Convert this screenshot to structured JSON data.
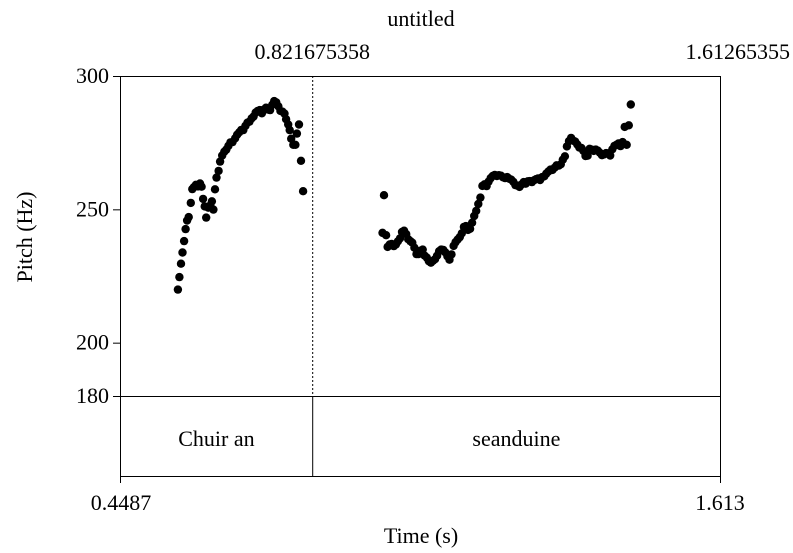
{
  "chart_data": {
    "type": "scatter",
    "title": "untitled",
    "xlabel": "Time (s)",
    "ylabel": "Pitch (Hz)",
    "xlim": [
      0.4487,
      1.613
    ],
    "ylim": [
      180,
      300
    ],
    "x_tick_labels": [
      "0.4487",
      "1.613"
    ],
    "top_tick_labels": [
      "0.821675358",
      "1.61265355"
    ],
    "y_tick_labels": [
      "300",
      "250",
      "200",
      "180"
    ],
    "y_ticks": [
      300,
      250,
      200,
      180
    ],
    "cursor_time": 0.821675358,
    "grid": false,
    "point_color": "#000000",
    "tier": {
      "boundary": 0.821675358,
      "intervals": [
        {
          "label": "Chuir an"
        },
        {
          "label": "seanduine"
        }
      ]
    },
    "points": [
      [
        0.561,
        219.9
      ],
      [
        0.564,
        224.6
      ],
      [
        0.567,
        229.6
      ],
      [
        0.57,
        233.8
      ],
      [
        0.573,
        238.1
      ],
      [
        0.576,
        242.6
      ],
      [
        0.579,
        245.8
      ],
      [
        0.582,
        247.1
      ],
      [
        0.586,
        252.4
      ],
      [
        0.589,
        257.6
      ],
      [
        0.592,
        258.3
      ],
      [
        0.596,
        259.2
      ],
      [
        0.6,
        258.6
      ],
      [
        0.604,
        259.7
      ],
      [
        0.607,
        258.5
      ],
      [
        0.61,
        253.9
      ],
      [
        0.613,
        251.1
      ],
      [
        0.616,
        246.9
      ],
      [
        0.62,
        250.6
      ],
      [
        0.624,
        251.5
      ],
      [
        0.627,
        253.0
      ],
      [
        0.63,
        249.9
      ],
      [
        0.633,
        257.5
      ],
      [
        0.636,
        261.9
      ],
      [
        0.64,
        264.4
      ],
      [
        0.643,
        267.9
      ],
      [
        0.647,
        270.2
      ],
      [
        0.651,
        271.6
      ],
      [
        0.655,
        272.4
      ],
      [
        0.659,
        273.8
      ],
      [
        0.663,
        275.1
      ],
      [
        0.667,
        275.2
      ],
      [
        0.672,
        276.6
      ],
      [
        0.676,
        278.0
      ],
      [
        0.68,
        278.9
      ],
      [
        0.684,
        279.8
      ],
      [
        0.688,
        279.7
      ],
      [
        0.692,
        281.3
      ],
      [
        0.696,
        282.5
      ],
      [
        0.7,
        282.9
      ],
      [
        0.704,
        284.1
      ],
      [
        0.708,
        284.8
      ],
      [
        0.712,
        286.3
      ],
      [
        0.716,
        286.9
      ],
      [
        0.72,
        287.2
      ],
      [
        0.724,
        286.0
      ],
      [
        0.728,
        287.4
      ],
      [
        0.732,
        288.1
      ],
      [
        0.736,
        287.4
      ],
      [
        0.74,
        287.2
      ],
      [
        0.744,
        289.2
      ],
      [
        0.748,
        290.6
      ],
      [
        0.752,
        290.1
      ],
      [
        0.756,
        288.6
      ],
      [
        0.76,
        286.9
      ],
      [
        0.764,
        286.6
      ],
      [
        0.768,
        285.9
      ],
      [
        0.771,
        283.8
      ],
      [
        0.775,
        281.8
      ],
      [
        0.778,
        279.7
      ],
      [
        0.781,
        276.5
      ],
      [
        0.785,
        274.2
      ],
      [
        0.789,
        274.2
      ],
      [
        0.792,
        278.4
      ],
      [
        0.796,
        281.8
      ],
      [
        0.8,
        268.2
      ],
      [
        0.804,
        256.8
      ],
      [
        0.958,
        241.2
      ],
      [
        0.961,
        255.3
      ],
      [
        0.965,
        240.3
      ],
      [
        0.968,
        235.9
      ],
      [
        0.972,
        236.8
      ],
      [
        0.976,
        237.0
      ],
      [
        0.98,
        236.2
      ],
      [
        0.984,
        236.8
      ],
      [
        0.988,
        238.0
      ],
      [
        0.992,
        239.1
      ],
      [
        0.996,
        241.5
      ],
      [
        1.0,
        242.0
      ],
      [
        1.004,
        240.7
      ],
      [
        1.008,
        238.8
      ],
      [
        1.012,
        238.1
      ],
      [
        1.016,
        237.5
      ],
      [
        1.02,
        235.6
      ],
      [
        1.024,
        233.2
      ],
      [
        1.028,
        233.2
      ],
      [
        1.032,
        234.5
      ],
      [
        1.036,
        234.9
      ],
      [
        1.04,
        232.6
      ],
      [
        1.044,
        231.9
      ],
      [
        1.048,
        230.6
      ],
      [
        1.052,
        230.0
      ],
      [
        1.056,
        230.7
      ],
      [
        1.06,
        231.3
      ],
      [
        1.064,
        232.6
      ],
      [
        1.068,
        234.3
      ],
      [
        1.072,
        234.9
      ],
      [
        1.076,
        234.8
      ],
      [
        1.08,
        233.9
      ],
      [
        1.084,
        232.4
      ],
      [
        1.088,
        231.1
      ],
      [
        1.092,
        233.1
      ],
      [
        1.096,
        236.3
      ],
      [
        1.1,
        237.7
      ],
      [
        1.104,
        238.7
      ],
      [
        1.108,
        239.6
      ],
      [
        1.112,
        241.0
      ],
      [
        1.116,
        243.4
      ],
      [
        1.12,
        243.7
      ],
      [
        1.124,
        242.3
      ],
      [
        1.128,
        242.7
      ],
      [
        1.132,
        245.0
      ],
      [
        1.136,
        247.5
      ],
      [
        1.14,
        249.4
      ],
      [
        1.144,
        252.0
      ],
      [
        1.148,
        254.4
      ],
      [
        1.152,
        258.8
      ],
      [
        1.156,
        259.4
      ],
      [
        1.16,
        258.7
      ],
      [
        1.164,
        260.4
      ],
      [
        1.168,
        261.7
      ],
      [
        1.172,
        262.5
      ],
      [
        1.176,
        262.9
      ],
      [
        1.18,
        262.5
      ],
      [
        1.184,
        262.8
      ],
      [
        1.188,
        262.6
      ],
      [
        1.192,
        262.0
      ],
      [
        1.196,
        261.7
      ],
      [
        1.2,
        262.1
      ],
      [
        1.204,
        261.5
      ],
      [
        1.208,
        261.1
      ],
      [
        1.212,
        260.3
      ],
      [
        1.216,
        259.1
      ],
      [
        1.22,
        258.9
      ],
      [
        1.224,
        258.4
      ],
      [
        1.228,
        259.3
      ],
      [
        1.232,
        260.2
      ],
      [
        1.236,
        259.6
      ],
      [
        1.24,
        260.5
      ],
      [
        1.244,
        260.6
      ],
      [
        1.248,
        260.2
      ],
      [
        1.252,
        260.9
      ],
      [
        1.256,
        261.3
      ],
      [
        1.26,
        261.6
      ],
      [
        1.264,
        261.0
      ],
      [
        1.268,
        262.1
      ],
      [
        1.272,
        262.4
      ],
      [
        1.276,
        263.4
      ],
      [
        1.28,
        264.2
      ],
      [
        1.284,
        264.9
      ],
      [
        1.288,
        264.8
      ],
      [
        1.292,
        265.6
      ],
      [
        1.296,
        266.5
      ],
      [
        1.3,
        266.4
      ],
      [
        1.304,
        266.9
      ],
      [
        1.308,
        268.6
      ],
      [
        1.312,
        269.9
      ],
      [
        1.316,
        273.6
      ],
      [
        1.32,
        275.6
      ],
      [
        1.324,
        276.8
      ],
      [
        1.328,
        275.8
      ],
      [
        1.332,
        275.4
      ],
      [
        1.336,
        274.3
      ],
      [
        1.34,
        273.2
      ],
      [
        1.344,
        273.0
      ],
      [
        1.348,
        271.9
      ],
      [
        1.352,
        270.0
      ],
      [
        1.356,
        270.1
      ],
      [
        1.36,
        272.7
      ],
      [
        1.364,
        272.4
      ],
      [
        1.368,
        271.9
      ],
      [
        1.372,
        272.4
      ],
      [
        1.376,
        272.0
      ],
      [
        1.38,
        271.2
      ],
      [
        1.384,
        270.3
      ],
      [
        1.388,
        270.6
      ],
      [
        1.392,
        271.1
      ],
      [
        1.396,
        270.9
      ],
      [
        1.4,
        270.2
      ],
      [
        1.404,
        272.5
      ],
      [
        1.408,
        273.8
      ],
      [
        1.412,
        274.2
      ],
      [
        1.416,
        274.7
      ],
      [
        1.42,
        273.7
      ],
      [
        1.424,
        275.2
      ],
      [
        1.428,
        280.9
      ],
      [
        1.432,
        274.2
      ],
      [
        1.436,
        281.5
      ],
      [
        1.44,
        289.3
      ]
    ]
  }
}
